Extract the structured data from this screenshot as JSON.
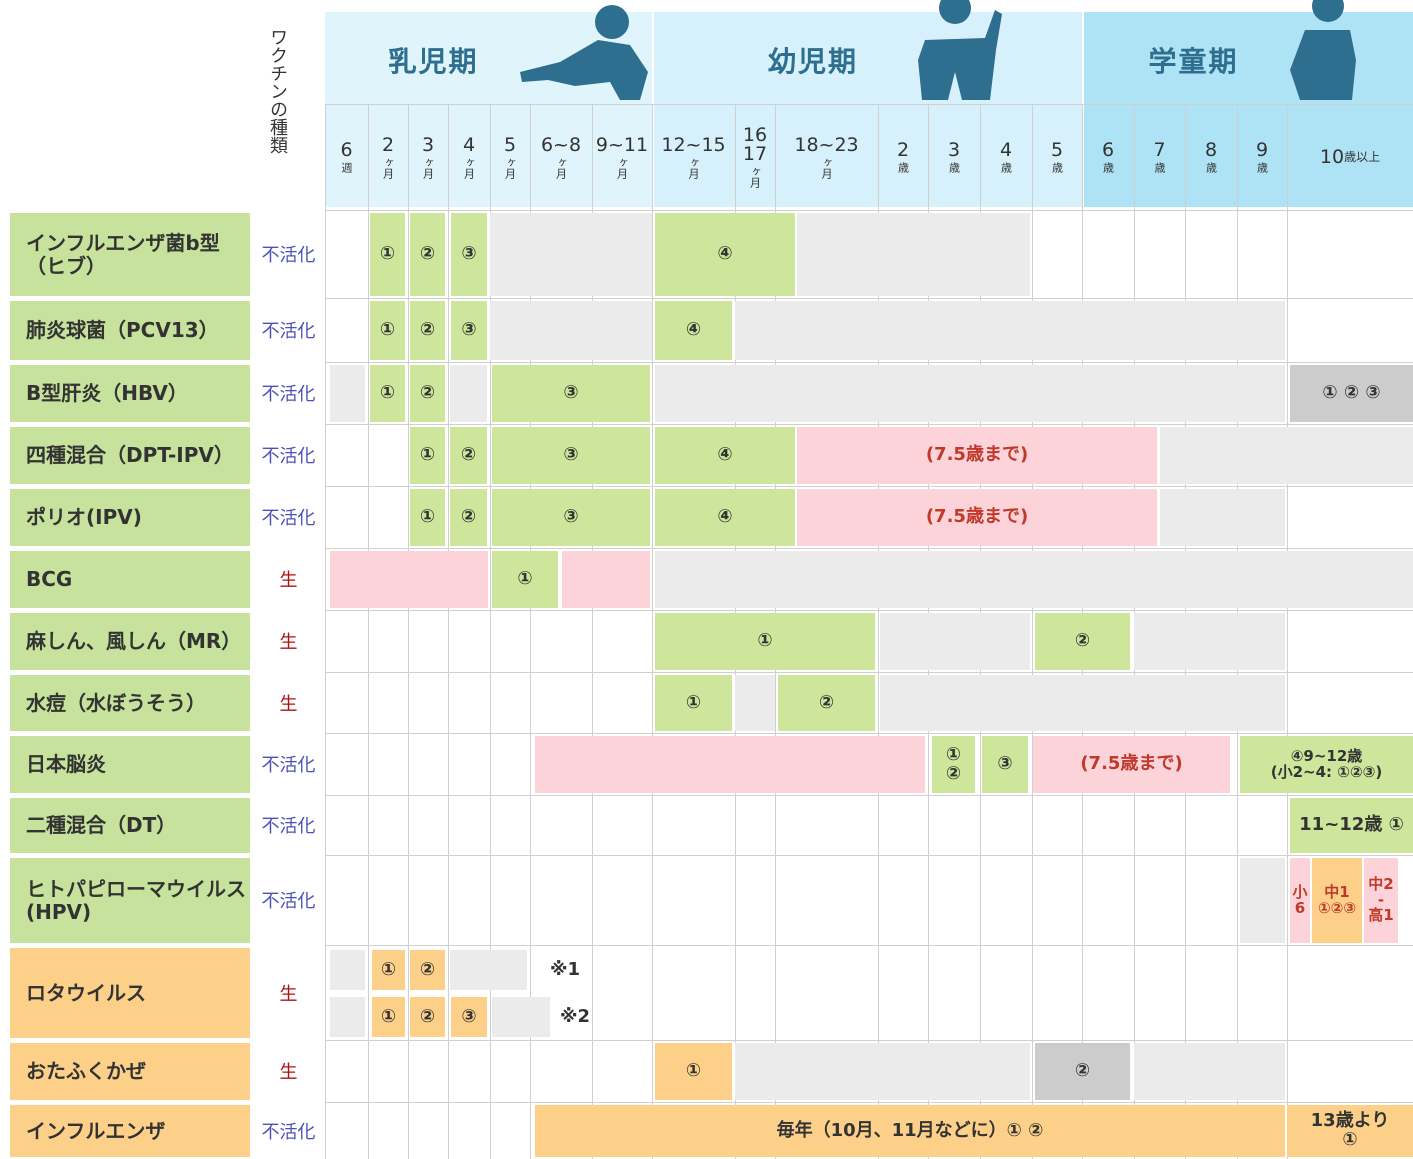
{
  "header": {
    "type_label": "ワクチンの種類",
    "periods": [
      "乳児期",
      "幼児期",
      "学童期"
    ],
    "ages": [
      {
        "num": [
          "6"
        ],
        "unit": "週"
      },
      {
        "num": [
          "2"
        ],
        "unit": "ヶ月"
      },
      {
        "num": [
          "3"
        ],
        "unit": "ヶ月"
      },
      {
        "num": [
          "4"
        ],
        "unit": "ヶ月"
      },
      {
        "num": [
          "5"
        ],
        "unit": "ヶ月"
      },
      {
        "num": [
          "6~8"
        ],
        "unit": "ヶ月"
      },
      {
        "num": [
          "9~11"
        ],
        "unit": "ヶ月"
      },
      {
        "num": [
          "12~15"
        ],
        "unit": "ヶ月"
      },
      {
        "num": [
          "16",
          "17"
        ],
        "unit": "ヶ月"
      },
      {
        "num": [
          "18~23"
        ],
        "unit": "ヶ月"
      },
      {
        "num": [
          "2"
        ],
        "unit": "歳"
      },
      {
        "num": [
          "3"
        ],
        "unit": "歳"
      },
      {
        "num": [
          "4"
        ],
        "unit": "歳"
      },
      {
        "num": [
          "5"
        ],
        "unit": "歳"
      },
      {
        "num": [
          "6"
        ],
        "unit": "歳"
      },
      {
        "num": [
          "7"
        ],
        "unit": "歳"
      },
      {
        "num": [
          "8"
        ],
        "unit": "歳"
      },
      {
        "num": [
          "9"
        ],
        "unit": "歳"
      },
      {
        "num": [
          "10"
        ],
        "unit": "歳以上"
      }
    ]
  },
  "rows": [
    {
      "name": [
        "インフルエンザ菌b型",
        "（ヒブ）"
      ],
      "kind": "不活化",
      "kind_color": "#4a52b8",
      "name_color": "#c6e29c",
      "marks": [
        "①",
        "②",
        "③",
        "④"
      ]
    },
    {
      "name": [
        "肺炎球菌（PCV13）"
      ],
      "kind": "不活化",
      "kind_color": "#4a52b8",
      "name_color": "#c6e29c",
      "marks": [
        "①",
        "②",
        "③",
        "④"
      ]
    },
    {
      "name": [
        "B型肝炎（HBV）"
      ],
      "kind": "不活化",
      "kind_color": "#4a52b8",
      "name_color": "#c6e29c",
      "marks": [
        "①",
        "②",
        "③",
        "① ② ③"
      ]
    },
    {
      "name": [
        "四種混合（DPT-IPV）"
      ],
      "kind": "不活化",
      "kind_color": "#4a52b8",
      "name_color": "#c6e29c",
      "marks": [
        "①",
        "②",
        "③",
        "④",
        "(7.5歳まで)"
      ]
    },
    {
      "name": [
        "ポリオ(IPV)"
      ],
      "kind": "不活化",
      "kind_color": "#4a52b8",
      "name_color": "#c6e29c",
      "marks": [
        "①",
        "②",
        "③",
        "④",
        "(7.5歳まで)"
      ]
    },
    {
      "name": [
        "BCG"
      ],
      "kind": "生",
      "kind_color": "#b01010",
      "name_color": "#c6e29c",
      "marks": [
        "①"
      ]
    },
    {
      "name": [
        "麻しん、風しん（MR）"
      ],
      "kind": "生",
      "kind_color": "#b01010",
      "name_color": "#c6e29c",
      "marks": [
        "①",
        "②"
      ]
    },
    {
      "name": [
        "水痘（水ぼうそう）"
      ],
      "kind": "生",
      "kind_color": "#b01010",
      "name_color": "#c6e29c",
      "marks": [
        "①",
        "②"
      ]
    },
    {
      "name": [
        "日本脳炎"
      ],
      "kind": "不活化",
      "kind_color": "#4a52b8",
      "name_color": "#c6e29c",
      "marks": [
        [
          "①",
          "②"
        ],
        "③",
        "(7.5歳まで)",
        [
          "④9~12歳",
          "(小2~4: ①②③)"
        ]
      ]
    },
    {
      "name": [
        "二種混合（DT）"
      ],
      "kind": "不活化",
      "kind_color": "#4a52b8",
      "name_color": "#c6e29c",
      "marks": [
        "11~12歳 ①"
      ]
    },
    {
      "name": [
        "ヒトパピローマウイルス",
        "(HPV)"
      ],
      "kind": "不活化",
      "kind_color": "#4a52b8",
      "name_color": "#c6e29c",
      "marks": [
        [
          "小",
          "6"
        ],
        [
          "中1",
          "①②③"
        ],
        [
          "中2",
          "-",
          "高1"
        ]
      ]
    },
    {
      "name": [
        "ロタウイルス"
      ],
      "kind": "生",
      "kind_color": "#b01010",
      "name_color": "#fdd08a",
      "marks": [
        "①",
        "②",
        "※1",
        "①",
        "②",
        "③",
        "※2"
      ]
    },
    {
      "name": [
        "おたふくかぜ"
      ],
      "kind": "生",
      "kind_color": "#b01010",
      "name_color": "#fdd08a",
      "marks": [
        "①",
        "②"
      ]
    },
    {
      "name": [
        "インフルエンザ"
      ],
      "kind": "不活化",
      "kind_color": "#4a52b8",
      "name_color": "#fdd08a",
      "marks": [
        "毎年（10月、11月などに）① ②",
        [
          "13歳より",
          "①"
        ]
      ]
    }
  ]
}
